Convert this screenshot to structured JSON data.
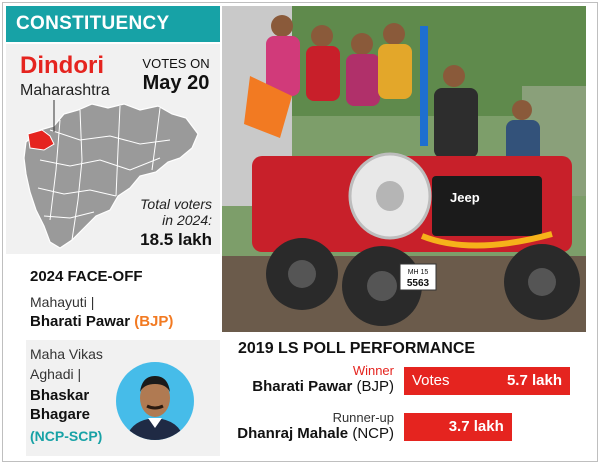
{
  "header": {
    "title": "CONSTITUENCY WATCH"
  },
  "constituency": {
    "name": "Dindori",
    "state": "Maharashtra"
  },
  "votes_on": {
    "label": "VOTES ON",
    "date": "May 20"
  },
  "total_voters": {
    "label_line1": "Total voters",
    "label_line2": "in 2024:",
    "value": "18.5 lakh"
  },
  "faceoff": {
    "title": "2024 FACE-OFF",
    "mahayuti": {
      "alliance": "Mahayuti |",
      "candidate": "Bharati Pawar",
      "party": "(BJP)"
    },
    "mva": {
      "alliance_line1": "Maha Vikas",
      "alliance_line2": "Aghadi |",
      "candidate_line1": "Bhaskar",
      "candidate_line2": "Bhagare",
      "party": "(NCP-SCP)"
    }
  },
  "poll_2019": {
    "title": "2019 LS POLL PERFORMANCE",
    "winner": {
      "role": "Winner",
      "name": "Bharati Pawar",
      "party": "(BJP)",
      "votes_lakh": 5.7,
      "votes_text": "5.7 lakh",
      "bar_label": "Votes"
    },
    "runner_up": {
      "role": "Runner-up",
      "name": "Dhanraj Mahale",
      "party": "(NCP)",
      "votes_lakh": 3.7,
      "votes_text": "3.7 lakh"
    }
  },
  "photo": {
    "jeep_brand": "Jeep",
    "plate_line1": "MH 15",
    "plate_line2": "5563"
  },
  "colors": {
    "accent": "#17a2a6",
    "red": "#e5241f",
    "bjp_orange": "#f27a22"
  }
}
